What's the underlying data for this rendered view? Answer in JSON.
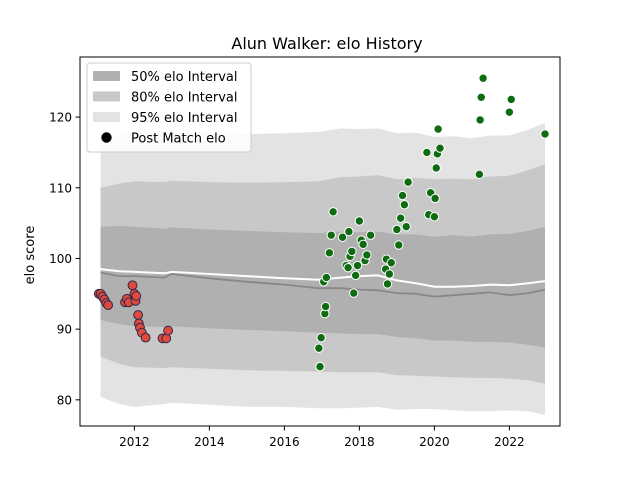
{
  "chart_data": {
    "type": "scatter",
    "title": "Alun Walker: elo History",
    "xlabel": "",
    "ylabel": "elo score",
    "xlim": [
      2010.55,
      2023.35
    ],
    "ylim": [
      76.3,
      128.5
    ],
    "xticks": [
      2012,
      2014,
      2016,
      2018,
      2020,
      2022
    ],
    "yticks": [
      80,
      90,
      100,
      110,
      120
    ],
    "legend_position": "top-left",
    "legend": [
      "50% elo Interval",
      "80% elo Interval",
      "95% elo Interval",
      "Post Match elo"
    ],
    "colors": {
      "band50": "#b0b0b0",
      "band80": "#c8c8c8",
      "band95": "#e3e3e3",
      "median_line": "#888888",
      "mean_line": "#ffffff",
      "early_points": "#e04a3c",
      "early_edge": "#2a2a50",
      "late_points": "#0f6b10",
      "late_edge": "#ffffff"
    },
    "bands": {
      "x": [
        2011.1,
        2011.6,
        2012.0,
        2012.8,
        2013.0,
        2014.0,
        2015.0,
        2016.0,
        2016.9,
        2017.5,
        2018.0,
        2018.5,
        2019.0,
        2019.5,
        2020.0,
        2020.5,
        2021.0,
        2021.5,
        2022.0,
        2022.5,
        2022.95
      ],
      "p95_hi": [
        117.0,
        117.6,
        117.8,
        117.7,
        118.0,
        117.8,
        117.6,
        117.7,
        117.9,
        118.4,
        118.3,
        118.4,
        117.7,
        117.8,
        117.2,
        117.3,
        117.0,
        117.4,
        117.4,
        118.2,
        119.2
      ],
      "p95_lo": [
        80.4,
        79.4,
        79.0,
        79.4,
        79.6,
        79.3,
        79.0,
        79.0,
        78.8,
        78.8,
        78.9,
        79.0,
        78.6,
        78.7,
        78.7,
        78.5,
        78.4,
        78.4,
        78.5,
        78.4,
        77.9
      ],
      "p80_hi": [
        110.0,
        110.6,
        110.9,
        110.8,
        111.0,
        110.8,
        110.7,
        110.8,
        110.9,
        111.5,
        111.6,
        111.8,
        111.2,
        111.4,
        111.2,
        111.3,
        111.2,
        111.6,
        111.7,
        112.5,
        113.3
      ],
      "p80_lo": [
        86.1,
        85.1,
        84.6,
        84.5,
        84.6,
        84.4,
        84.2,
        84.1,
        84.0,
        83.9,
        83.9,
        83.9,
        83.5,
        83.4,
        83.3,
        83.2,
        83.1,
        83.1,
        83.0,
        82.8,
        82.3
      ],
      "p50_hi": [
        104.5,
        104.6,
        104.5,
        104.2,
        104.4,
        104.1,
        103.9,
        103.7,
        103.6,
        103.8,
        103.7,
        103.8,
        103.4,
        103.4,
        103.1,
        103.3,
        103.1,
        103.4,
        103.5,
        103.9,
        104.5
      ],
      "p50_lo": [
        91.3,
        90.7,
        90.4,
        90.3,
        90.4,
        90.1,
        89.9,
        89.7,
        89.5,
        89.4,
        89.3,
        89.3,
        88.9,
        88.7,
        88.4,
        88.4,
        88.2,
        88.2,
        88.1,
        87.8,
        87.4
      ],
      "median": [
        98.0,
        97.5,
        97.5,
        97.3,
        97.8,
        97.2,
        96.7,
        96.3,
        95.8,
        95.8,
        95.6,
        95.5,
        95.1,
        95.0,
        94.6,
        94.8,
        95.0,
        95.2,
        94.8,
        95.1,
        95.6
      ],
      "mean": [
        98.5,
        98.2,
        98.1,
        97.9,
        98.1,
        97.8,
        97.5,
        97.2,
        97.0,
        97.3,
        97.5,
        97.6,
        96.9,
        96.5,
        96.0,
        96.0,
        96.1,
        96.3,
        96.2,
        96.5,
        96.8
      ]
    },
    "series": [
      {
        "x": [
          2011.05,
          2011.1,
          2011.15,
          2011.2,
          2011.25,
          2011.3,
          2011.75,
          2011.8,
          2011.85,
          2011.95,
          2012.0,
          2012.03,
          2012.05,
          2012.1,
          2012.12,
          2012.15,
          2012.2,
          2012.3,
          2012.75,
          2012.85,
          2012.9
        ],
        "y": [
          95.0,
          95.0,
          94.6,
          94.2,
          93.7,
          93.4,
          93.8,
          94.3,
          93.8,
          96.2,
          95.0,
          94.0,
          94.7,
          92.0,
          90.8,
          90.2,
          89.5,
          88.8,
          88.7,
          88.7,
          89.8
        ]
      },
      {
        "x": [
          2016.92,
          2016.95,
          2016.98,
          2017.05,
          2017.08,
          2017.1,
          2017.12,
          2017.2,
          2017.25,
          2017.3,
          2017.55,
          2017.65,
          2017.7,
          2017.72,
          2017.75,
          2017.8,
          2017.85,
          2017.9,
          2017.95,
          2018.0,
          2018.05,
          2018.1,
          2018.15,
          2018.2,
          2018.3,
          2018.7,
          2018.72,
          2018.75,
          2018.8,
          2018.85,
          2019.0,
          2019.05,
          2019.1,
          2019.15,
          2019.2,
          2019.25,
          2019.3,
          2019.8,
          2019.85,
          2019.9,
          2020.0,
          2020.02,
          2020.05,
          2020.08,
          2020.1,
          2020.15,
          2021.2,
          2021.22,
          2021.25,
          2021.3,
          2022.0,
          2022.05,
          2022.95
        ],
        "y": [
          87.3,
          84.7,
          88.8,
          96.7,
          92.2,
          93.2,
          97.3,
          100.8,
          103.3,
          106.6,
          103.0,
          99.0,
          98.7,
          103.8,
          100.3,
          101.0,
          95.1,
          97.6,
          99.0,
          105.3,
          102.6,
          102.0,
          99.7,
          100.5,
          103.3,
          98.5,
          99.9,
          96.4,
          97.8,
          99.4,
          104.1,
          101.9,
          105.7,
          108.9,
          107.6,
          104.5,
          110.8,
          115.0,
          106.2,
          109.3,
          105.9,
          108.5,
          112.8,
          114.8,
          118.3,
          115.6,
          111.9,
          119.6,
          122.8,
          125.5,
          120.7,
          122.5,
          117.6
        ]
      }
    ]
  }
}
